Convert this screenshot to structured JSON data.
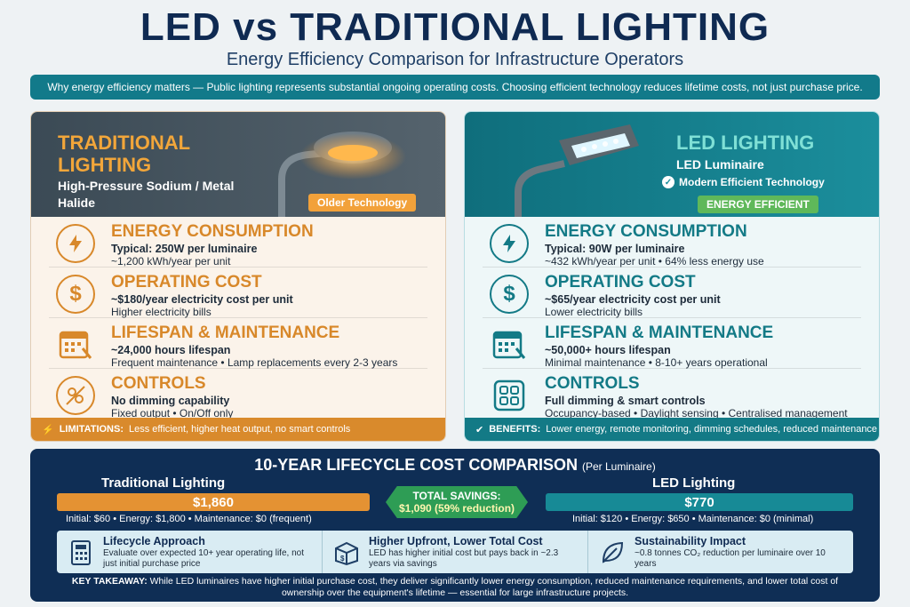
{
  "header": {
    "title": "LED vs TRADITIONAL LIGHTING",
    "subtitle": "Energy Efficiency Comparison for Infrastructure Operators",
    "banner": "Why energy efficiency matters — Public lighting represents substantial ongoing operating costs. Choosing efficient technology reduces lifetime costs, not just purchase price."
  },
  "traditional": {
    "title": "TRADITIONAL LIGHTING",
    "subtitle": "High-Pressure Sodium / Metal Halide",
    "badge": "Older Technology",
    "rows": [
      {
        "heading": "ENERGY CONSUMPTION",
        "line1": "Typical: 250W per luminaire",
        "line2": "~1,200 kWh/year per unit",
        "icon": "lightning-icon"
      },
      {
        "heading": "OPERATING COST",
        "line1": "~$180/year electricity cost per unit",
        "line2": "Higher electricity bills",
        "icon": "dollar-icon"
      },
      {
        "heading": "LIFESPAN & MAINTENANCE",
        "line1": "~24,000 hours lifespan",
        "line2": "Frequent maintenance • Lamp replacements every 2-3 years",
        "icon": "calendar-wrench-icon"
      },
      {
        "heading": "CONTROLS",
        "line1": "No dimming capability",
        "line2": "Fixed output • On/Off only",
        "icon": "no-dimming-icon"
      }
    ],
    "footer_label": "LIMITATIONS:",
    "footer_text": "Less efficient, higher heat output, no smart controls"
  },
  "led": {
    "title": "LED LIGHTING",
    "subtitle": "LED Luminaire",
    "check_text": "Modern Efficient Technology",
    "badge": "ENERGY EFFICIENT",
    "rows": [
      {
        "heading": "ENERGY CONSUMPTION",
        "line1": "Typical: 90W per luminaire",
        "line2": "~432 kWh/year per unit • 64% less energy use",
        "icon": "lightning-icon"
      },
      {
        "heading": "OPERATING COST",
        "line1": "~$65/year electricity cost per unit",
        "line2": "Lower electricity bills",
        "icon": "dollar-icon"
      },
      {
        "heading": "LIFESPAN & MAINTENANCE",
        "line1": "~50,000+ hours lifespan",
        "line2": "Minimal maintenance • 8-10+ years  operational",
        "icon": "calendar-wrench-icon"
      },
      {
        "heading": "CONTROLS",
        "line1": "Full dimming & smart controls",
        "line2": "Occupancy-based • Daylight sensing • Centralised management",
        "icon": "smart-controls-icon"
      }
    ],
    "footer_label": "BENEFITS:",
    "footer_text": "Lower energy, remote monitoring, dimming schedules, reduced maintenance"
  },
  "lifecycle": {
    "title": "10-YEAR LIFECYCLE COST COMPARISON",
    "title_note": "(Per Luminaire)",
    "traditional_label": "Traditional Lighting",
    "traditional_total": "$1,860",
    "traditional_value": 1860,
    "traditional_breakdown": "Initial: $60 • Energy: $1,800 • Maintenance: $0 (frequent)",
    "led_label": "LED Lighting",
    "led_total": "$770",
    "led_value": 770,
    "led_breakdown": "Initial: $120 • Energy: $650 • Maintenance: $0 (minimal)",
    "savings_label": "TOTAL SAVINGS:",
    "savings_value": "$1,090 (59% reduction)",
    "info": [
      {
        "title": "Lifecycle Approach",
        "desc": "Evaluate over expected 10+ year operating life, not just initial purchase price",
        "icon": "calculator-icon"
      },
      {
        "title": "Higher Upfront, Lower Total Cost",
        "desc": "LED has higher initial cost but pays back in ~2.3 years via savings",
        "icon": "money-box-icon"
      },
      {
        "title": "Sustainability Impact",
        "desc": "~0.8 tonnes CO₂ reduction per luminaire over 10 years",
        "icon": "leaf-icon"
      }
    ],
    "takeaway_label": "KEY TAKEAWAY:",
    "takeaway_text": "While LED luminaires have higher initial purchase cost, they deliver significantly lower energy consumption, reduced maintenance requirements, and lower total cost of ownership over the equipment's lifetime — essential for large infrastructure projects."
  },
  "colors": {
    "navy": "#0f2a52",
    "orange": "#d8882a",
    "teal": "#137a86",
    "green": "#2e9d55"
  }
}
